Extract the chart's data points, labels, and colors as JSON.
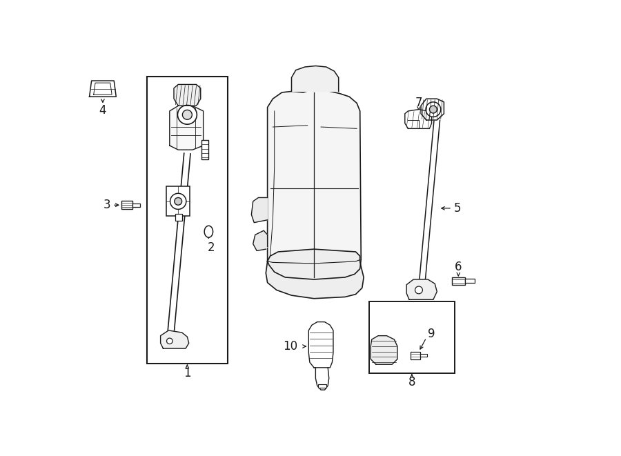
{
  "background_color": "#ffffff",
  "line_color": "#1a1a1a",
  "fig_width": 9.0,
  "fig_height": 6.61,
  "dpi": 100,
  "xlim": [
    0,
    9.0
  ],
  "ylim": [
    0,
    6.61
  ]
}
